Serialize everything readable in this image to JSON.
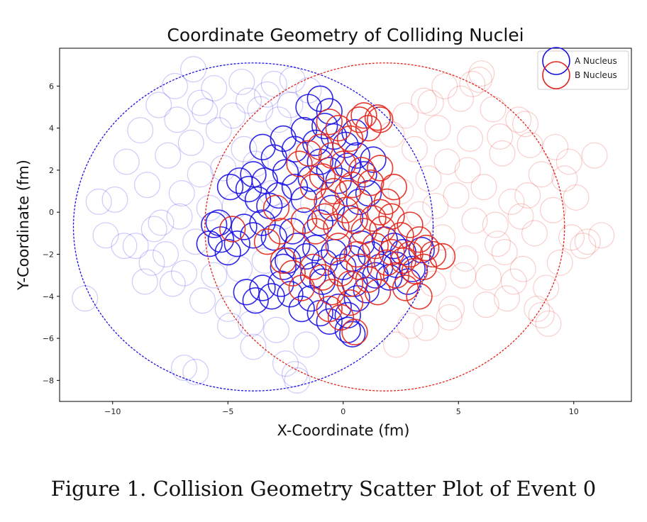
{
  "caption": "Figure 1. Collision Geometry Scatter Plot of Event 0",
  "chart_data": {
    "type": "scatter",
    "title": "Coordinate Geometry of Colliding Nuclei",
    "xlabel": "X-Coordinate (fm)",
    "ylabel": "Y-Coordinate (fm)",
    "xlim": [
      -12.3,
      12.5
    ],
    "ylim": [
      -9.0,
      7.8
    ],
    "xticks": [
      -10,
      -5,
      0,
      5,
      10
    ],
    "yticks": [
      -8,
      -6,
      -4,
      -2,
      0,
      2,
      4,
      6
    ],
    "grid": false,
    "legend": "top-right",
    "marker": "hollow circle",
    "marker_radius_fm": 0.55,
    "nucleus_boundaries": [
      {
        "series": "A Nucleus",
        "center": [
          -3.9,
          -0.7
        ],
        "radius": 7.8
      },
      {
        "series": "B Nucleus",
        "center": [
          1.8,
          -0.7
        ],
        "radius": 7.8
      }
    ],
    "series": [
      {
        "name": "A Nucleus",
        "color": "#1a10e6",
        "participants": [
          [
            -5.6,
            -0.6
          ],
          [
            -5.3,
            -1.3
          ],
          [
            -5.8,
            -1.5
          ],
          [
            -5.0,
            -1.9
          ],
          [
            -4.3,
            -0.7
          ],
          [
            -3.9,
            -1.1
          ],
          [
            -3.5,
            -0.5
          ],
          [
            -3.0,
            -1.2
          ],
          [
            -4.9,
            1.2
          ],
          [
            -4.5,
            1.5
          ],
          [
            -4.1,
            1.1
          ],
          [
            -3.7,
            0.6
          ],
          [
            -3.2,
            0.3
          ],
          [
            -3.9,
            1.8
          ],
          [
            -3.4,
            1.5
          ],
          [
            -2.8,
            0.8
          ],
          [
            -2.5,
            1.9
          ],
          [
            -2.1,
            1.2
          ],
          [
            -1.7,
            0.6
          ],
          [
            -1.4,
            1.6
          ],
          [
            -1.0,
            2.4
          ],
          [
            -0.6,
            2.0
          ],
          [
            -0.2,
            1.5
          ],
          [
            0.2,
            2.2
          ],
          [
            0.6,
            2.7
          ],
          [
            0.9,
            1.8
          ],
          [
            1.3,
            2.5
          ],
          [
            -3.5,
            3.1
          ],
          [
            -3.0,
            2.6
          ],
          [
            -2.6,
            3.5
          ],
          [
            -2.1,
            3.0
          ],
          [
            -1.7,
            3.9
          ],
          [
            -1.2,
            3.3
          ],
          [
            -0.8,
            4.1
          ],
          [
            -0.4,
            3.6
          ],
          [
            0.1,
            3.2
          ],
          [
            0.5,
            3.8
          ],
          [
            -1.5,
            5.0
          ],
          [
            -1.0,
            5.4
          ],
          [
            -0.6,
            4.8
          ],
          [
            -4.2,
            -3.8
          ],
          [
            -3.8,
            -4.2
          ],
          [
            -3.5,
            -3.6
          ],
          [
            -3.1,
            -4.0
          ],
          [
            -2.7,
            -3.4
          ],
          [
            -2.3,
            -3.9
          ],
          [
            -1.8,
            -4.6
          ],
          [
            -1.4,
            -4.1
          ],
          [
            -1.0,
            -4.8
          ],
          [
            -0.6,
            -5.2
          ],
          [
            -0.2,
            -4.5
          ],
          [
            0.2,
            -4.9
          ],
          [
            0.6,
            -4.1
          ],
          [
            1.0,
            -3.7
          ],
          [
            0.2,
            -5.6
          ],
          [
            0.4,
            -5.8
          ],
          [
            -2.0,
            -1.6
          ],
          [
            -1.6,
            -2.1
          ],
          [
            -1.2,
            -1.7
          ],
          [
            -0.8,
            -2.4
          ],
          [
            -0.4,
            -1.9
          ],
          [
            0.0,
            -2.6
          ],
          [
            0.4,
            -2.2
          ],
          [
            0.8,
            -1.5
          ],
          [
            1.2,
            -2.0
          ],
          [
            1.6,
            -2.6
          ],
          [
            2.0,
            -3.1
          ],
          [
            2.3,
            -2.5
          ],
          [
            2.6,
            -1.9
          ],
          [
            3.0,
            -2.7
          ],
          [
            2.8,
            -3.3
          ],
          [
            1.8,
            -1.3
          ],
          [
            -2.6,
            -2.6
          ],
          [
            -2.2,
            -0.9
          ],
          [
            -1.0,
            -0.5
          ],
          [
            0.3,
            -0.3
          ],
          [
            0.7,
            0.5
          ],
          [
            1.1,
            0.9
          ],
          [
            -0.5,
            0.2
          ],
          [
            -2.4,
            -2.3
          ],
          [
            -1.3,
            -3.0
          ],
          [
            -0.9,
            -3.3
          ],
          [
            0.5,
            -3.4
          ],
          [
            1.4,
            -3.0
          ],
          [
            2.2,
            -1.6
          ],
          [
            3.4,
            -1.8
          ],
          [
            -4.6,
            -1.5
          ],
          [
            -5.4,
            -0.5
          ]
        ],
        "spectators": [
          [
            -11.2,
            -4.1
          ],
          [
            -10.3,
            -1.1
          ],
          [
            -9.9,
            0.6
          ],
          [
            -9.4,
            2.4
          ],
          [
            -9.0,
            -1.6
          ],
          [
            -8.8,
            3.9
          ],
          [
            -8.5,
            1.3
          ],
          [
            -8.3,
            -2.4
          ],
          [
            -8.0,
            5.1
          ],
          [
            -7.9,
            -0.5
          ],
          [
            -7.6,
            2.7
          ],
          [
            -7.4,
            -3.4
          ],
          [
            -7.2,
            4.4
          ],
          [
            -7.0,
            0.9
          ],
          [
            -6.9,
            -2.9
          ],
          [
            -6.6,
            3.3
          ],
          [
            -6.5,
            6.8
          ],
          [
            -6.4,
            -1.4
          ],
          [
            -6.2,
            1.8
          ],
          [
            -6.1,
            -4.2
          ],
          [
            -6.0,
            4.8
          ],
          [
            -5.8,
            0.2
          ],
          [
            -5.6,
            -3.0
          ],
          [
            -5.4,
            3.9
          ],
          [
            -5.2,
            2.1
          ],
          [
            -5.0,
            -4.6
          ],
          [
            -4.8,
            4.6
          ],
          [
            -4.7,
            0.3
          ],
          [
            -4.5,
            -2.7
          ],
          [
            -4.3,
            3.0
          ],
          [
            -4.1,
            5.3
          ],
          [
            -4.0,
            -5.3
          ],
          [
            -3.8,
            2.3
          ],
          [
            -3.6,
            4.9
          ],
          [
            -3.4,
            -2.3
          ],
          [
            -3.3,
            5.6
          ],
          [
            -3.1,
            0.9
          ],
          [
            -2.9,
            -5.6
          ],
          [
            -2.8,
            4.4
          ],
          [
            -2.6,
            -0.2
          ],
          [
            -2.5,
            -7.2
          ],
          [
            -2.3,
            5.1
          ],
          [
            -2.1,
            -7.7
          ],
          [
            -2.0,
            -8.0
          ],
          [
            -1.8,
            2.7
          ],
          [
            -1.6,
            -6.3
          ],
          [
            -1.5,
            5.8
          ],
          [
            -1.3,
            0.4
          ],
          [
            -6.9,
            -7.4
          ],
          [
            -6.4,
            -7.6
          ],
          [
            -4.9,
            -5.4
          ],
          [
            -3.9,
            -6.4
          ],
          [
            -7.7,
            -2.0
          ],
          [
            -8.6,
            -3.3
          ],
          [
            -9.5,
            -1.6
          ],
          [
            -10.6,
            0.5
          ],
          [
            -7.3,
            6.0
          ],
          [
            -6.2,
            5.2
          ],
          [
            -5.6,
            5.9
          ],
          [
            -4.4,
            6.2
          ],
          [
            -3.0,
            6.1
          ],
          [
            -2.2,
            6.3
          ],
          [
            -8.2,
            -0.8
          ],
          [
            -7.1,
            -0.2
          ]
        ]
      },
      {
        "name": "B Nucleus",
        "color": "#e2231a",
        "participants": [
          [
            -0.6,
            4.3
          ],
          [
            -0.2,
            4.0
          ],
          [
            0.3,
            3.5
          ],
          [
            0.7,
            4.4
          ],
          [
            1.1,
            4.0
          ],
          [
            1.5,
            4.5
          ],
          [
            0.9,
            4.6
          ],
          [
            1.6,
            4.4
          ],
          [
            -1.3,
            1.2
          ],
          [
            -0.9,
            1.7
          ],
          [
            -0.4,
            1.0
          ],
          [
            0.0,
            2.3
          ],
          [
            0.4,
            1.3
          ],
          [
            0.8,
            2.0
          ],
          [
            1.2,
            1.4
          ],
          [
            1.6,
            2.1
          ],
          [
            -1.7,
            -0.4
          ],
          [
            -1.2,
            -0.9
          ],
          [
            -0.8,
            -0.2
          ],
          [
            -0.3,
            -0.7
          ],
          [
            0.1,
            0.1
          ],
          [
            0.5,
            -0.4
          ],
          [
            0.9,
            -0.9
          ],
          [
            1.3,
            -0.3
          ],
          [
            1.7,
            -0.8
          ],
          [
            2.1,
            -0.2
          ],
          [
            2.5,
            -1.1
          ],
          [
            2.9,
            -0.6
          ],
          [
            3.3,
            -1.3
          ],
          [
            3.6,
            -1.7
          ],
          [
            3.9,
            -2.0
          ],
          [
            4.3,
            -2.1
          ],
          [
            -2.6,
            -2.3
          ],
          [
            -2.2,
            -2.9
          ],
          [
            -1.8,
            -3.6
          ],
          [
            -1.3,
            -2.6
          ],
          [
            -0.9,
            -3.1
          ],
          [
            -0.5,
            -3.8
          ],
          [
            -0.1,
            -2.9
          ],
          [
            0.3,
            -3.4
          ],
          [
            0.7,
            -2.6
          ],
          [
            1.1,
            -3.2
          ],
          [
            1.5,
            -3.8
          ],
          [
            1.9,
            -2.4
          ],
          [
            2.3,
            -3.0
          ],
          [
            2.7,
            -3.6
          ],
          [
            3.1,
            -2.8
          ],
          [
            3.3,
            -4.0
          ],
          [
            -0.6,
            -4.6
          ],
          [
            -0.1,
            -5.0
          ],
          [
            0.3,
            -4.3
          ],
          [
            0.5,
            -5.7
          ],
          [
            -1.5,
            2.8
          ],
          [
            -1.0,
            3.1
          ],
          [
            -0.5,
            2.7
          ],
          [
            1.9,
            0.5
          ],
          [
            2.2,
            1.2
          ],
          [
            -2.7,
            -0.9
          ],
          [
            -3.3,
            -1.4
          ],
          [
            -4.8,
            -0.8
          ],
          [
            -2.9,
            0.2
          ],
          [
            -0.2,
            -1.6
          ],
          [
            0.6,
            -2.0
          ],
          [
            1.4,
            -1.6
          ],
          [
            2.1,
            -1.9
          ],
          [
            2.6,
            -2.3
          ],
          [
            0.2,
            0.9
          ],
          [
            -0.7,
            0.5
          ],
          [
            1.6,
            0.0
          ],
          [
            -1.9,
            2.3
          ],
          [
            2.9,
            -2.0
          ],
          [
            3.5,
            -2.6
          ]
        ],
        "spectators": [
          [
            11.2,
            -1.1
          ],
          [
            10.9,
            2.7
          ],
          [
            10.4,
            -1.6
          ],
          [
            10.1,
            0.7
          ],
          [
            9.8,
            2.4
          ],
          [
            9.4,
            -2.4
          ],
          [
            9.1,
            0.1
          ],
          [
            8.8,
            -3.6
          ],
          [
            8.6,
            1.8
          ],
          [
            8.3,
            -1.0
          ],
          [
            8.1,
            3.2
          ],
          [
            7.8,
            -2.7
          ],
          [
            7.6,
            4.4
          ],
          [
            7.3,
            0.5
          ],
          [
            7.1,
            -4.1
          ],
          [
            6.9,
            2.8
          ],
          [
            6.7,
            -1.5
          ],
          [
            6.5,
            4.9
          ],
          [
            6.3,
            -3.1
          ],
          [
            6.1,
            1.2
          ],
          [
            5.9,
            6.3
          ],
          [
            5.7,
            -0.4
          ],
          [
            5.5,
            3.5
          ],
          [
            5.3,
            -2.2
          ],
          [
            5.1,
            5.4
          ],
          [
            4.9,
            0.8
          ],
          [
            4.7,
            -4.6
          ],
          [
            4.5,
            2.4
          ],
          [
            4.3,
            -1.2
          ],
          [
            4.1,
            4.0
          ],
          [
            3.9,
            -3.4
          ],
          [
            3.7,
            1.6
          ],
          [
            3.5,
            5.3
          ],
          [
            3.3,
            -0.1
          ],
          [
            3.1,
            3.0
          ],
          [
            2.9,
            -5.4
          ],
          [
            2.7,
            4.6
          ],
          [
            2.5,
            1.0
          ],
          [
            2.3,
            -6.3
          ],
          [
            2.1,
            3.7
          ],
          [
            8.9,
            -5.3
          ],
          [
            8.4,
            -4.6
          ],
          [
            9.9,
            -1.2
          ],
          [
            6.0,
            6.6
          ],
          [
            5.6,
            6.1
          ],
          [
            7.9,
            4.2
          ],
          [
            8.6,
            -4.9
          ],
          [
            9.6,
            1.6
          ],
          [
            7.4,
            -3.3
          ],
          [
            6.6,
            -0.6
          ],
          [
            4.4,
            6.0
          ],
          [
            3.8,
            5.2
          ],
          [
            6.8,
            3.6
          ],
          [
            5.2,
            -3.0
          ],
          [
            4.6,
            -5.0
          ],
          [
            7.0,
            -1.9
          ],
          [
            10.6,
            -1.4
          ],
          [
            9.2,
            3.1
          ],
          [
            8.0,
            0.8
          ],
          [
            6.2,
            -4.4
          ],
          [
            3.6,
            -5.5
          ],
          [
            5.4,
            2.0
          ],
          [
            7.7,
            -0.2
          ],
          [
            4.0,
            0.3
          ]
        ]
      }
    ]
  }
}
